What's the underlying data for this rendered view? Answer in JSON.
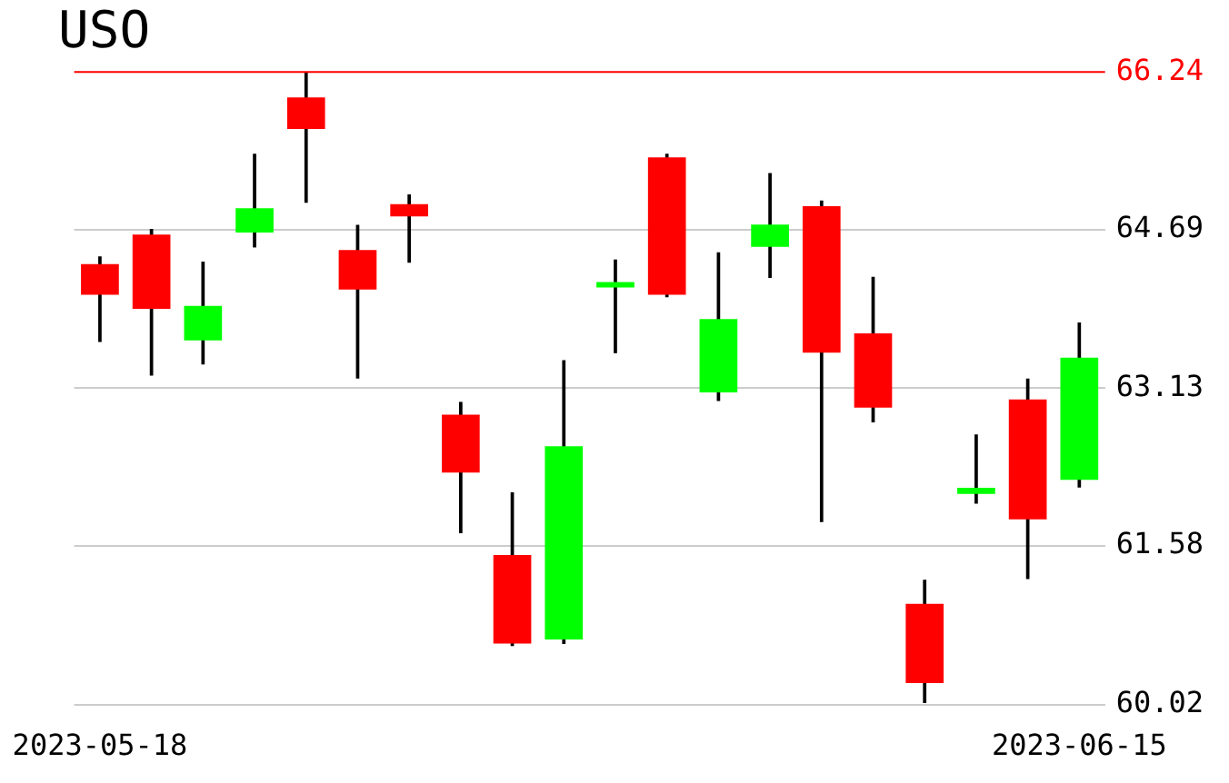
{
  "chart_data": {
    "type": "candlestick",
    "title": "USO",
    "categories": [
      "2023-05-18",
      null,
      null,
      null,
      null,
      null,
      null,
      null,
      null,
      null,
      null,
      null,
      null,
      null,
      null,
      null,
      null,
      null,
      null,
      "2023-06-15"
    ],
    "ohlc": [
      [
        64.35,
        64.42,
        63.59,
        64.05
      ],
      [
        64.64,
        64.69,
        63.26,
        63.91
      ],
      [
        63.6,
        64.37,
        63.37,
        63.94
      ],
      [
        64.66,
        65.43,
        64.52,
        64.9
      ],
      [
        65.99,
        66.24,
        64.96,
        65.68
      ],
      [
        64.49,
        64.73,
        63.23,
        64.1
      ],
      [
        64.94,
        65.03,
        64.37,
        64.82
      ],
      [
        62.87,
        62.99,
        61.71,
        62.3
      ],
      [
        61.49,
        62.1,
        60.6,
        60.62
      ],
      [
        60.66,
        63.4,
        60.62,
        62.56
      ],
      [
        64.12,
        64.39,
        63.48,
        64.17
      ],
      [
        65.4,
        65.43,
        64.03,
        64.05
      ],
      [
        63.09,
        64.46,
        63.01,
        63.81
      ],
      [
        64.52,
        65.24,
        64.22,
        64.74
      ],
      [
        64.92,
        64.97,
        61.82,
        63.48
      ],
      [
        63.67,
        64.22,
        62.8,
        62.94
      ],
      [
        61.01,
        61.24,
        60.04,
        60.23
      ],
      [
        62.09,
        62.67,
        62.0,
        62.15
      ],
      [
        63.02,
        63.22,
        61.26,
        61.84
      ],
      [
        62.23,
        63.77,
        62.16,
        63.43
      ]
    ],
    "colors": [
      "#ff0000",
      "#ff0000",
      "#00ff00",
      "#00ff00",
      "#ff0000",
      "#ff0000",
      "#ff0000",
      "#ff0000",
      "#ff0000",
      "#00ff00",
      "#00ff00",
      "#ff0000",
      "#00ff00",
      "#00ff00",
      "#ff0000",
      "#ff0000",
      "#ff0000",
      "#00ff00",
      "#ff0000",
      "#00ff00"
    ],
    "ylim": [
      60.02,
      66.24
    ],
    "yticks": [
      60.02,
      61.58,
      63.13,
      64.69
    ],
    "ref_lines": [
      {
        "axis": "y",
        "value": 66.24,
        "label": "66.24",
        "color": "#ff0000"
      }
    ],
    "grid": "y",
    "legend": false
  }
}
